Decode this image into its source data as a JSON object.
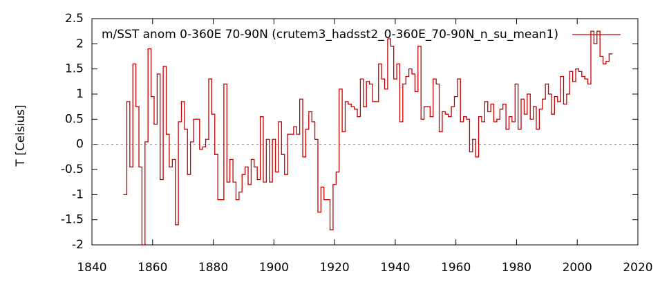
{
  "chart_data": {
    "type": "line",
    "drawstyle": "steps-mid",
    "y_label": "T [Celsius]",
    "x": [
      1851,
      1852,
      1853,
      1854,
      1855,
      1856,
      1857,
      1858,
      1859,
      1860,
      1861,
      1862,
      1863,
      1864,
      1865,
      1866,
      1867,
      1868,
      1869,
      1870,
      1871,
      1872,
      1873,
      1874,
      1875,
      1876,
      1877,
      1878,
      1879,
      1880,
      1881,
      1882,
      1883,
      1884,
      1885,
      1886,
      1887,
      1888,
      1889,
      1890,
      1891,
      1892,
      1893,
      1894,
      1895,
      1896,
      1897,
      1898,
      1899,
      1900,
      1901,
      1902,
      1903,
      1904,
      1905,
      1906,
      1907,
      1908,
      1909,
      1910,
      1911,
      1912,
      1913,
      1914,
      1915,
      1916,
      1917,
      1918,
      1919,
      1920,
      1921,
      1922,
      1923,
      1924,
      1925,
      1926,
      1927,
      1928,
      1929,
      1930,
      1931,
      1932,
      1933,
      1934,
      1935,
      1936,
      1937,
      1938,
      1939,
      1940,
      1941,
      1942,
      1943,
      1944,
      1945,
      1946,
      1947,
      1948,
      1949,
      1950,
      1951,
      1952,
      1953,
      1954,
      1955,
      1956,
      1957,
      1958,
      1959,
      1960,
      1961,
      1962,
      1963,
      1964,
      1965,
      1966,
      1967,
      1968,
      1969,
      1970,
      1971,
      1972,
      1973,
      1974,
      1975,
      1976,
      1977,
      1978,
      1979,
      1980,
      1981,
      1982,
      1983,
      1984,
      1985,
      1986,
      1987,
      1988,
      1989,
      1990,
      1991,
      1992,
      1993,
      1994,
      1995,
      1996,
      1997,
      1998,
      1999,
      2000,
      2001,
      2002,
      2003,
      2004,
      2005,
      2006,
      2007,
      2008,
      2009,
      2010,
      2011
    ],
    "series": [
      {
        "name": "m/SST anom 0-360E 70-90N (crutem3_hadsst2_0-360E_70-90N_n_su_mean1)",
        "color": "#c00000",
        "values": [
          -1.0,
          0.85,
          -0.45,
          1.6,
          0.75,
          -0.45,
          -2.0,
          0.05,
          1.9,
          0.95,
          0.4,
          1.4,
          -0.7,
          1.55,
          0.2,
          -0.45,
          -0.3,
          -1.6,
          0.45,
          0.85,
          0.3,
          -0.6,
          0.05,
          0.5,
          0.5,
          -0.1,
          -0.05,
          0.1,
          1.3,
          0.6,
          -0.2,
          -1.1,
          -1.1,
          1.2,
          -0.75,
          -0.3,
          -0.75,
          -1.1,
          -0.95,
          -0.6,
          -0.45,
          -0.8,
          -0.3,
          -0.45,
          -0.7,
          0.55,
          -0.75,
          0.1,
          -0.75,
          0.1,
          -0.55,
          0.45,
          -0.2,
          -0.6,
          0.2,
          0.2,
          0.35,
          0.2,
          0.9,
          -0.25,
          0.3,
          0.65,
          0.45,
          0.1,
          -1.35,
          -0.85,
          -1.1,
          -1.1,
          -1.7,
          -0.8,
          -0.55,
          1.1,
          0.25,
          0.85,
          0.8,
          0.75,
          0.7,
          0.55,
          1.3,
          0.75,
          1.25,
          1.2,
          0.85,
          0.85,
          1.6,
          1.3,
          1.1,
          2.1,
          1.95,
          1.3,
          1.6,
          0.45,
          1.2,
          1.35,
          1.5,
          1.4,
          1.05,
          1.95,
          0.5,
          0.75,
          0.75,
          0.55,
          1.3,
          1.2,
          0.25,
          0.65,
          0.6,
          0.55,
          0.75,
          0.95,
          1.3,
          0.45,
          0.55,
          0.5,
          -0.15,
          0.1,
          -0.25,
          0.55,
          0.45,
          0.85,
          0.65,
          0.8,
          0.45,
          0.5,
          0.7,
          0.8,
          0.3,
          0.55,
          0.45,
          1.2,
          0.3,
          0.9,
          0.6,
          1.0,
          0.5,
          0.75,
          0.3,
          0.7,
          0.9,
          1.2,
          1.0,
          0.6,
          0.95,
          0.85,
          1.35,
          0.8,
          1.0,
          1.45,
          1.25,
          1.5,
          1.45,
          1.35,
          1.3,
          1.2,
          2.25,
          2.0,
          2.25,
          1.75,
          1.6,
          1.65,
          1.8
        ]
      }
    ],
    "xlim": [
      1840,
      2020
    ],
    "xticks": [
      1840,
      1860,
      1880,
      1900,
      1920,
      1940,
      1960,
      1980,
      2000,
      2020
    ],
    "ylim": [
      -2,
      2.5
    ],
    "yticks": [
      -2,
      -1.5,
      -1,
      -0.5,
      0,
      0.5,
      1,
      1.5,
      2,
      2.5
    ],
    "zero_line": true,
    "legend": "top-right"
  }
}
